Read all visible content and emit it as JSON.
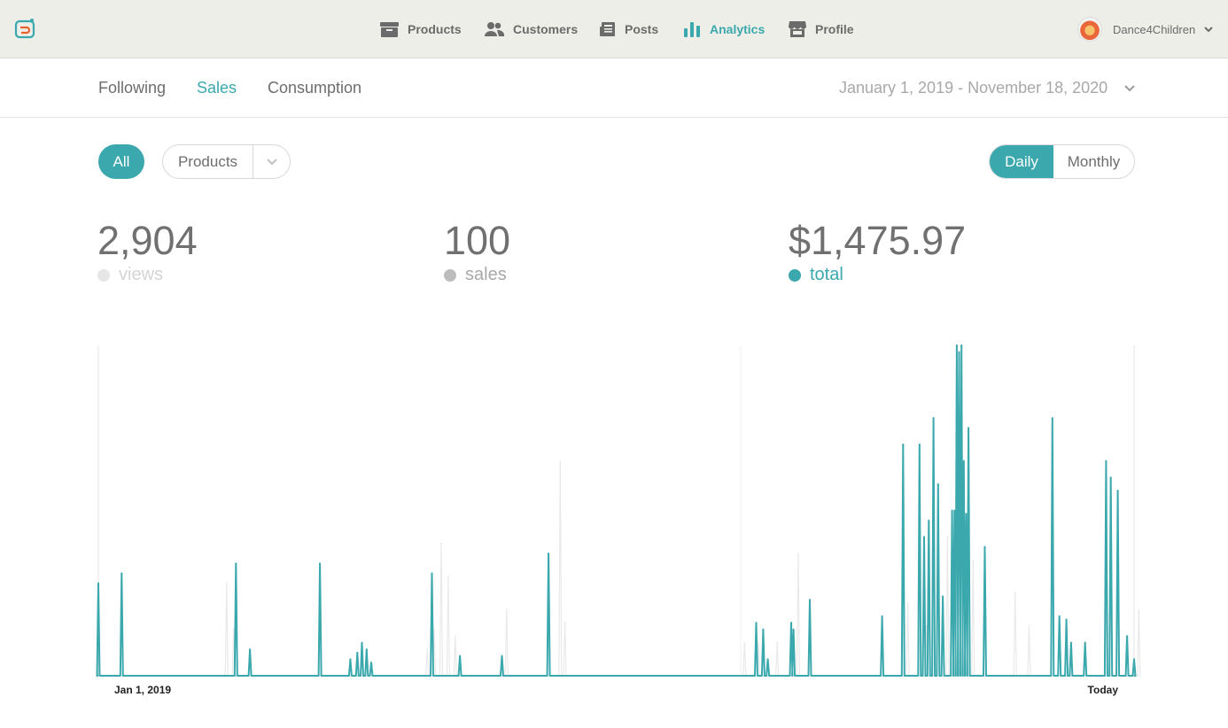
{
  "topbar": {
    "nav": [
      {
        "label": "Products",
        "icon": "box-icon",
        "active": false
      },
      {
        "label": "Customers",
        "icon": "users-icon",
        "active": false
      },
      {
        "label": "Posts",
        "icon": "newspaper-icon",
        "active": false
      },
      {
        "label": "Analytics",
        "icon": "bar-chart-icon",
        "active": true
      },
      {
        "label": "Profile",
        "icon": "storefront-icon",
        "active": false
      }
    ],
    "account": {
      "name": "Dance4Children"
    }
  },
  "subnav": {
    "tabs": [
      {
        "label": "Following",
        "active": false
      },
      {
        "label": "Sales",
        "active": true
      },
      {
        "label": "Consumption",
        "active": false
      }
    ],
    "date_range": "January 1, 2019 - November 18, 2020"
  },
  "filters": {
    "all_label": "All",
    "products_label": "Products",
    "interval": {
      "daily": "Daily",
      "monthly": "Monthly",
      "selected": "Daily"
    }
  },
  "stats": {
    "views": {
      "value": "2,904",
      "label": "views",
      "color": "#e6e6e6"
    },
    "sales": {
      "value": "100",
      "label": "sales",
      "color": "#bdbdbd"
    },
    "total": {
      "value": "$1,475.97",
      "label": "total",
      "color": "#3aa8ad"
    }
  },
  "colors": {
    "accent": "#3aa8ad",
    "views_line": "#e9e9e9"
  },
  "chart_data": {
    "type": "line",
    "x_start_label": "Jan 1, 2019",
    "x_end_label": "Today",
    "series": [
      {
        "name": "total",
        "color": "#3aa8ad",
        "points": [
          [
            0,
            28
          ],
          [
            10,
            31
          ],
          [
            59,
            34
          ],
          [
            65,
            8
          ],
          [
            95,
            34
          ],
          [
            108,
            5
          ],
          [
            111,
            7
          ],
          [
            113,
            10
          ],
          [
            115,
            8
          ],
          [
            117,
            4
          ],
          [
            143,
            31
          ],
          [
            155,
            6
          ],
          [
            173,
            6
          ],
          [
            193,
            37
          ],
          [
            282,
            16
          ],
          [
            285,
            14
          ],
          [
            287,
            5
          ],
          [
            297,
            16
          ],
          [
            298,
            14
          ],
          [
            305,
            23
          ],
          [
            336,
            18
          ],
          [
            345,
            70
          ],
          [
            352,
            70
          ],
          [
            354,
            42
          ],
          [
            356,
            47
          ],
          [
            358,
            78
          ],
          [
            360,
            58
          ],
          [
            362,
            24
          ],
          [
            366,
            50
          ],
          [
            367,
            50
          ],
          [
            368,
            100
          ],
          [
            369,
            98
          ],
          [
            370,
            100
          ],
          [
            371,
            65
          ],
          [
            372,
            49
          ],
          [
            373,
            75
          ],
          [
            380,
            39
          ],
          [
            409,
            78
          ],
          [
            412,
            18
          ],
          [
            415,
            17
          ],
          [
            417,
            10
          ],
          [
            423,
            10
          ],
          [
            432,
            65
          ],
          [
            434,
            60
          ],
          [
            437,
            56
          ],
          [
            441,
            12
          ],
          [
            444,
            5
          ]
        ]
      },
      {
        "name": "views",
        "color": "#e9e9e9",
        "points": [
          [
            55,
            28
          ],
          [
            58,
            14
          ],
          [
            141,
            8
          ],
          [
            144,
            14
          ],
          [
            147,
            40
          ],
          [
            150,
            30
          ],
          [
            153,
            12
          ],
          [
            175,
            20
          ],
          [
            198,
            65
          ],
          [
            200,
            16
          ],
          [
            277,
            10
          ],
          [
            283,
            10
          ],
          [
            291,
            10
          ],
          [
            300,
            37
          ],
          [
            347,
            22
          ],
          [
            355,
            15
          ],
          [
            364,
            42
          ],
          [
            368,
            70
          ],
          [
            370,
            62
          ],
          [
            372,
            47
          ],
          [
            375,
            35
          ],
          [
            393,
            25
          ],
          [
            399,
            15
          ],
          [
            423,
            10
          ],
          [
            446,
            20
          ]
        ]
      }
    ],
    "ylim": [
      0,
      100
    ],
    "grid": false
  }
}
